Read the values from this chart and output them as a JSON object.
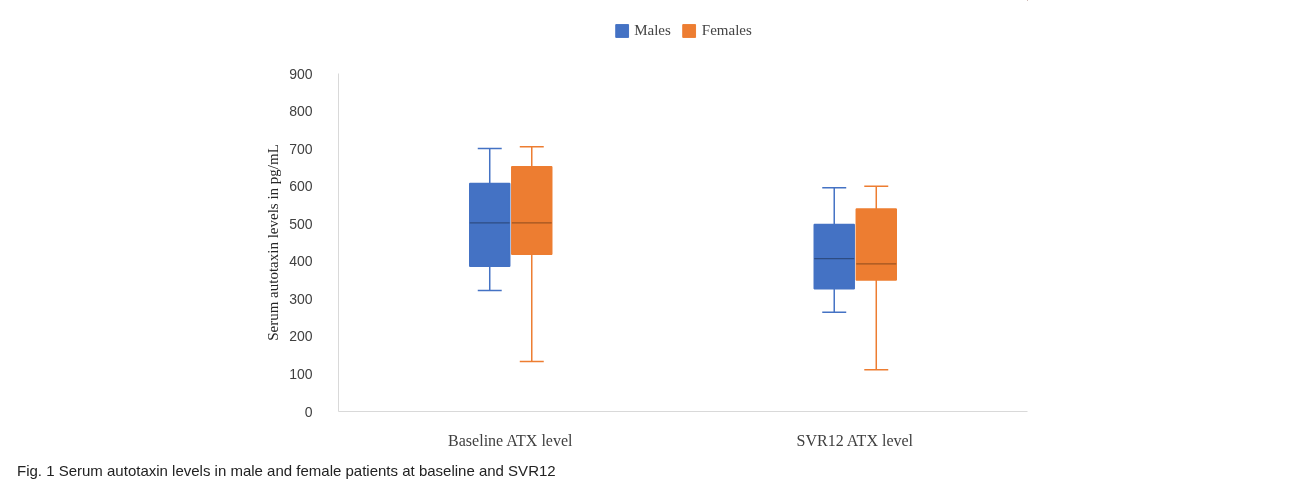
{
  "chart_data": {
    "type": "box",
    "categories": [
      "Baseline ATX level",
      "SVR12 ATX level"
    ],
    "ylabel": "Serum autotaxin levels in pg/mL",
    "ylim": [
      0,
      900
    ],
    "yticks": [
      0,
      100,
      200,
      300,
      400,
      500,
      600,
      700,
      800,
      900
    ],
    "grid": false,
    "legend": "top",
    "annotations": [
      "Fig. 1 Serum autotaxin levels in male and female patients at baseline and SVR12"
    ],
    "series": [
      {
        "name": "Males",
        "color": "#4472c4",
        "boxes": [
          {
            "low": 322,
            "q1": 387,
            "median": 502,
            "q3": 607,
            "high": 700
          },
          {
            "low": 264,
            "q1": 327,
            "median": 407,
            "q3": 498,
            "high": 596
          }
        ]
      },
      {
        "name": "Females",
        "color": "#ed7d31",
        "boxes": [
          {
            "low": 133,
            "q1": 419,
            "median": 502,
            "q3": 652,
            "high": 705
          },
          {
            "low": 111,
            "q1": 350,
            "median": 393,
            "q3": 539,
            "high": 600
          }
        ]
      }
    ]
  }
}
